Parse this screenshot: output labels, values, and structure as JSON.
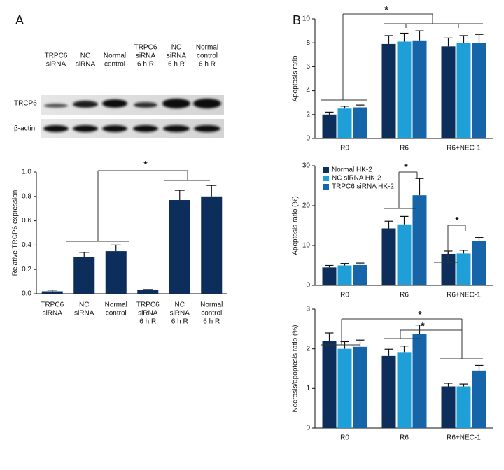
{
  "panels": [
    "A",
    "B"
  ],
  "blot": {
    "lanes": [
      [
        "TRPC6",
        "siRNA"
      ],
      [
        "NC",
        "siRNA"
      ],
      [
        "Normal",
        "control"
      ],
      [
        "TRPC6",
        "siRNA",
        "6 h R"
      ],
      [
        "NC",
        "siRNA",
        "6 h R"
      ],
      [
        "Normal",
        "control",
        "6 h R"
      ]
    ],
    "rows": [
      "TRCP6",
      "β-actin"
    ]
  },
  "chart_data": [
    {
      "type": "bar",
      "ylabel": "Relative TRCP6 expression",
      "categories": [
        [
          "TRPC6",
          "siRNA"
        ],
        [
          "NC",
          "siRNA"
        ],
        [
          "Normal",
          "control"
        ],
        [
          "TRPC6",
          "siRNA",
          "6 h R"
        ],
        [
          "NC",
          "siRNA",
          "6 h R"
        ],
        [
          "Normal",
          "control",
          "6 h R"
        ]
      ],
      "values": [
        0.02,
        0.3,
        0.35,
        0.03,
        0.77,
        0.8
      ],
      "errors": [
        0.01,
        0.04,
        0.05,
        0.005,
        0.08,
        0.09
      ],
      "color": "#0d2d5a",
      "ylim": [
        0,
        1
      ],
      "yticks": [
        {
          "value": 0,
          "label": "0.0"
        },
        0.2,
        0.4,
        0.6,
        0.8,
        {
          "value": 1,
          "label": "1.0"
        }
      ],
      "annotations": [
        "*"
      ]
    },
    {
      "type": "grouped_bar",
      "ylabel": "Apoptosis ratio",
      "categories": [
        "R0",
        "R6",
        "R6+NEC-1"
      ],
      "series": [
        {
          "name": "Normal HK-2",
          "color": "#0d2d5a",
          "values": [
            2.0,
            7.9,
            7.7
          ],
          "errors": [
            0.2,
            0.7,
            0.7
          ]
        },
        {
          "name": "NC siRNA HK-2",
          "color": "#1e9fd8",
          "values": [
            2.5,
            8.1,
            8.0
          ],
          "errors": [
            0.2,
            0.7,
            0.6
          ]
        },
        {
          "name": "TRPC6 siRNA HK-2",
          "color": "#1565a8",
          "values": [
            2.6,
            8.2,
            8.0
          ],
          "errors": [
            0.2,
            0.8,
            0.7
          ]
        }
      ],
      "ylim": [
        0,
        10
      ],
      "yticks": [
        0,
        2,
        4,
        6,
        8,
        10
      ],
      "annotations": [
        "*"
      ]
    },
    {
      "type": "grouped_bar",
      "ylabel": "Apoptosis ratio (%)",
      "categories": [
        "R0",
        "R6",
        "R6+NEC-1"
      ],
      "series": [
        {
          "name": "Normal HK-2",
          "color": "#0d2d5a",
          "values": [
            4.5,
            14.3,
            7.9
          ],
          "errors": [
            0.5,
            1.8,
            0.7
          ]
        },
        {
          "name": "NC siRNA HK-2",
          "color": "#1e9fd8",
          "values": [
            5.0,
            15.3,
            8.0
          ],
          "errors": [
            0.5,
            2.0,
            0.8
          ]
        },
        {
          "name": "TRPC6 siRNA HK-2",
          "color": "#1565a8",
          "values": [
            5.1,
            22.6,
            11.2
          ],
          "errors": [
            0.5,
            4.2,
            0.8
          ]
        }
      ],
      "ylim": [
        0,
        30
      ],
      "yticks": [
        0,
        10,
        20,
        30
      ],
      "legend": "top-left",
      "annotations": [
        "*",
        "*"
      ]
    },
    {
      "type": "grouped_bar",
      "ylabel": "Necrosis/apoptosis ratio (%)",
      "categories": [
        "R0",
        "R6",
        "R6+NEC-1"
      ],
      "series": [
        {
          "name": "Normal HK-2",
          "color": "#0d2d5a",
          "values": [
            2.2,
            1.82,
            1.05
          ],
          "errors": [
            0.2,
            0.17,
            0.08
          ]
        },
        {
          "name": "NC siRNA HK-2",
          "color": "#1e9fd8",
          "values": [
            2.0,
            1.9,
            1.05
          ],
          "errors": [
            0.18,
            0.17,
            0.06
          ]
        },
        {
          "name": "TRPC6 siRNA HK-2",
          "color": "#1565a8",
          "values": [
            2.05,
            2.38,
            1.45
          ],
          "errors": [
            0.17,
            0.22,
            0.13
          ]
        }
      ],
      "ylim": [
        0,
        3
      ],
      "yticks": [
        0,
        1,
        2,
        3
      ],
      "annotations": [
        "*",
        "*"
      ]
    }
  ]
}
